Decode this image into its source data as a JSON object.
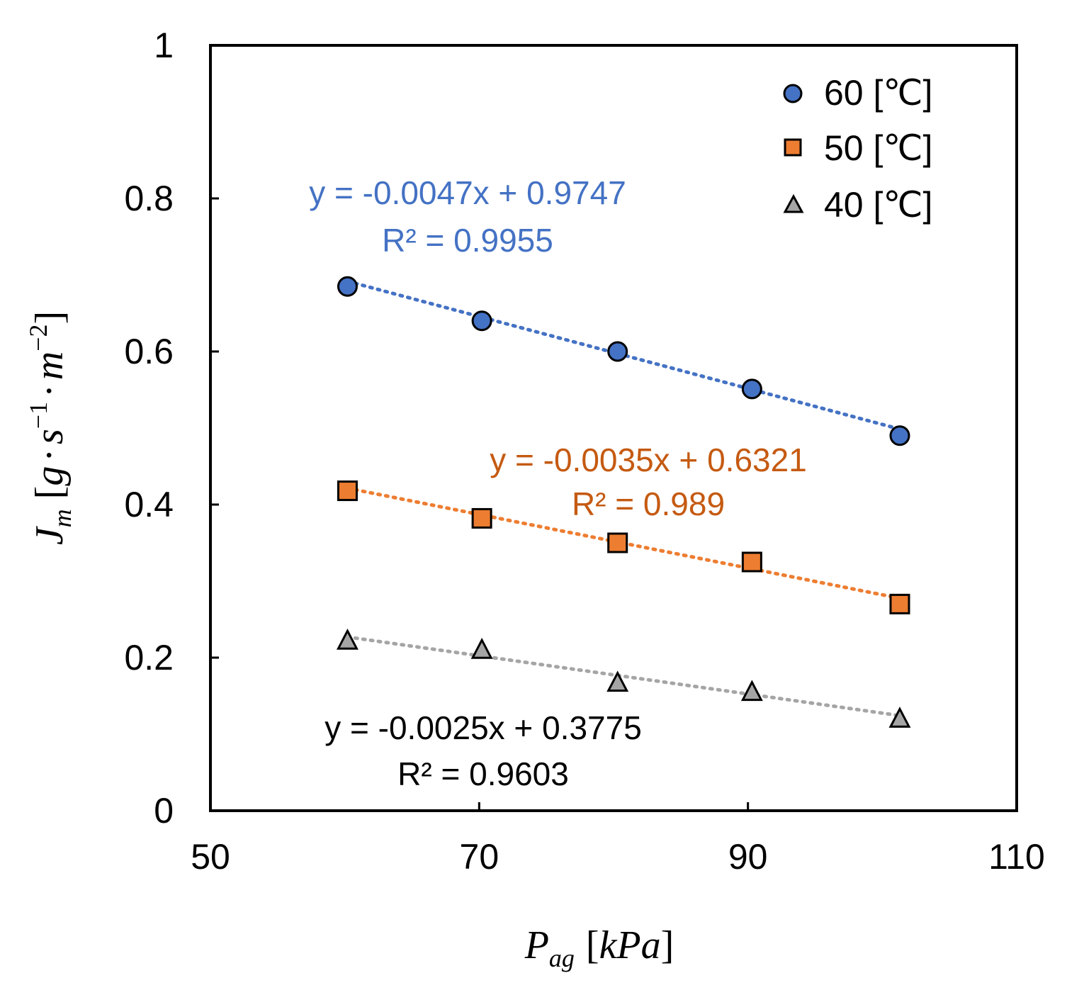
{
  "chart_data": {
    "type": "scatter",
    "title": "",
    "xlabel": "P_ag [kPa]",
    "ylabel": "J_m [g·s^-1·m^-2]",
    "xlim": [
      50,
      110
    ],
    "ylim": [
      0,
      1
    ],
    "x_ticks": [
      "50",
      "70",
      "90",
      "110"
    ],
    "y_ticks": [
      "0",
      "0.2",
      "0.4",
      "0.6",
      "0.8",
      "1"
    ],
    "x_tick_values": [
      50,
      70,
      90,
      110
    ],
    "y_tick_values": [
      0,
      0.2,
      0.4,
      0.6,
      0.8,
      1
    ],
    "grid": false,
    "legend_position": "top-right",
    "series": [
      {
        "name": "60 [℃]",
        "marker": "circle",
        "color": "#4472C4",
        "x": [
          60.2,
          70.2,
          80.3,
          90.3,
          101.3
        ],
        "y": [
          0.685,
          0.64,
          0.6,
          0.551,
          0.49
        ],
        "trendline": {
          "slope": -0.0047,
          "intercept": 0.9747
        },
        "equation": "y = -0.0047x + 0.9747",
        "r2": "R² = 0.9955"
      },
      {
        "name": "50 [℃]",
        "marker": "square",
        "color": "#ED7D31",
        "x": [
          60.2,
          70.2,
          80.3,
          90.3,
          101.3
        ],
        "y": [
          0.418,
          0.382,
          0.35,
          0.325,
          0.27
        ],
        "trendline": {
          "slope": -0.0035,
          "intercept": 0.6321
        },
        "equation": "y = -0.0035x + 0.6321",
        "r2": "R² = 0.989"
      },
      {
        "name": "40 [℃]",
        "marker": "triangle",
        "color": "#A5A5A5",
        "x": [
          60.2,
          70.2,
          80.3,
          90.3,
          101.3
        ],
        "y": [
          0.222,
          0.21,
          0.167,
          0.155,
          0.12
        ],
        "trendline": {
          "slope": -0.0025,
          "intercept": 0.3775
        },
        "equation": "y = -0.0025x + 0.3775",
        "r2": "R² = 0.9603"
      }
    ]
  },
  "equation_colors": [
    "#4472C4",
    "#C55A11",
    "#000000"
  ],
  "axis_title_parts": {
    "y_main": "J",
    "y_sub": "m",
    "y_unit_g": "g",
    "y_dot": "·",
    "y_s": "s",
    "y_exp1": "−1",
    "y_m": "m",
    "y_exp2": "−2",
    "x_main": "P",
    "x_sub": "ag",
    "x_unit": "kPa"
  }
}
